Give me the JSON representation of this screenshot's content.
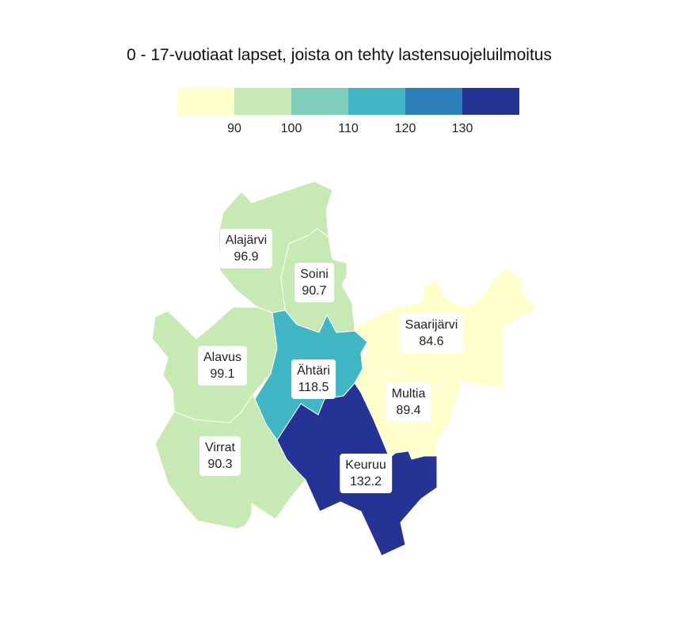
{
  "title": "0 - 17-vuotiaat lapset, joista on tehty lastensuojeluilmoitus",
  "legend": {
    "colors": [
      "#ffffcc",
      "#c7e9b4",
      "#7fcdbb",
      "#41b6c4",
      "#2c7fb8",
      "#253494"
    ],
    "breaks": [
      "90",
      "100",
      "110",
      "120",
      "130"
    ]
  },
  "regions": [
    {
      "id": "alajarvi",
      "name": "Alajärvi",
      "value": "96.9",
      "color": "#c7e9b4"
    },
    {
      "id": "soini",
      "name": "Soini",
      "value": "90.7",
      "color": "#c7e9b4"
    },
    {
      "id": "saarijarvi",
      "name": "Saarijärvi",
      "value": "84.6",
      "color": "#ffffcc"
    },
    {
      "id": "alavus",
      "name": "Alavus",
      "value": "99.1",
      "color": "#c7e9b4"
    },
    {
      "id": "ahtari",
      "name": "Ähtäri",
      "value": "118.5",
      "color": "#41b6c4"
    },
    {
      "id": "multia",
      "name": "Multia",
      "value": "89.4",
      "color": "#ffffcc"
    },
    {
      "id": "virrat",
      "name": "Virrat",
      "value": "90.3",
      "color": "#c7e9b4"
    },
    {
      "id": "keuruu",
      "name": "Keuruu",
      "value": "132.2",
      "color": "#253494"
    }
  ]
}
